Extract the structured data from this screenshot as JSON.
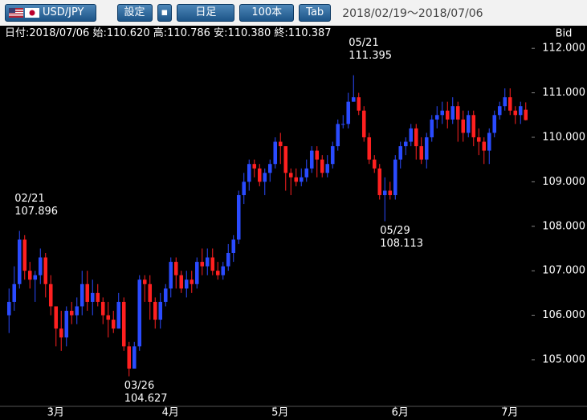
{
  "toolbar": {
    "symbol": "USD/JPY",
    "buttons": [
      "設定",
      "日足",
      "100本",
      "Tab"
    ],
    "range": "2018/02/19～2018/07/06"
  },
  "info": [
    {
      "label": "日付:",
      "value": "2018/07/06"
    },
    {
      "label": "始:",
      "value": "110.620"
    },
    {
      "label": "高:",
      "value": "110.786"
    },
    {
      "label": "安:",
      "value": "110.380"
    },
    {
      "label": "終:",
      "value": "110.387"
    }
  ],
  "chart_data": {
    "type": "candlestick",
    "y_axis_label": "Bid",
    "up_color": "#2a4bff",
    "down_color": "#ff2020",
    "categories": [
      null,
      null,
      null,
      null,
      null,
      null,
      null,
      null,
      "3月",
      null,
      null,
      null,
      null,
      null,
      null,
      null,
      null,
      null,
      null,
      null,
      null,
      null,
      null,
      null,
      null,
      null,
      null,
      null,
      null,
      null,
      "4月",
      null,
      null,
      null,
      null,
      null,
      null,
      null,
      null,
      null,
      null,
      null,
      null,
      null,
      null,
      null,
      null,
      null,
      null,
      null,
      null,
      "5月",
      null,
      null,
      null,
      null,
      null,
      null,
      null,
      null,
      null,
      null,
      null,
      null,
      null,
      null,
      null,
      null,
      null,
      null,
      null,
      null,
      null,
      null,
      "6月",
      null,
      null,
      null,
      null,
      null,
      null,
      null,
      null,
      null,
      null,
      null,
      null,
      null,
      null,
      null,
      null,
      null,
      null,
      null,
      null,
      "7月",
      null,
      null,
      null,
      null
    ],
    "open": [
      106.0,
      106.3,
      106.7,
      107.7,
      107.0,
      106.8,
      106.9,
      107.3,
      106.7,
      106.2,
      105.7,
      105.5,
      106.1,
      106.0,
      106.2,
      106.7,
      106.3,
      106.5,
      106.3,
      106.0,
      105.9,
      105.7,
      106.3,
      105.3,
      104.8,
      105.3,
      106.8,
      106.7,
      106.3,
      105.9,
      106.3,
      106.6,
      107.2,
      106.9,
      106.6,
      106.8,
      106.7,
      107.2,
      107.1,
      107.3,
      107.0,
      106.9,
      107.1,
      107.4,
      107.7,
      108.7,
      109.0,
      109.4,
      109.3,
      109.0,
      109.2,
      109.4,
      109.9,
      109.8,
      109.2,
      109.1,
      109.0,
      109.1,
      109.3,
      109.7,
      109.5,
      109.2,
      109.4,
      109.8,
      110.3,
      110.3,
      110.8,
      110.9,
      110.6,
      110.0,
      109.5,
      109.3,
      108.7,
      108.8,
      108.7,
      109.5,
      109.8,
      109.9,
      110.2,
      109.8,
      109.5,
      110.0,
      110.4,
      110.5,
      110.6,
      110.4,
      110.7,
      110.4,
      110.1,
      110.5,
      110.0,
      109.9,
      109.7,
      110.1,
      110.5,
      110.7,
      110.9,
      110.6,
      110.5,
      110.62
    ],
    "high": [
      106.6,
      107.1,
      107.896,
      107.8,
      107.2,
      107.0,
      107.5,
      107.4,
      106.9,
      106.2,
      106.1,
      106.2,
      106.3,
      106.4,
      107.0,
      107.0,
      106.8,
      106.7,
      106.4,
      106.3,
      106.1,
      106.5,
      106.4,
      105.4,
      105.4,
      106.9,
      106.9,
      106.9,
      106.4,
      106.5,
      106.7,
      107.3,
      107.3,
      107.0,
      107.0,
      107.0,
      107.3,
      107.5,
      107.5,
      107.5,
      107.2,
      107.2,
      107.6,
      107.8,
      108.8,
      109.2,
      109.5,
      109.5,
      109.4,
      109.3,
      109.5,
      110.0,
      110.1,
      109.8,
      109.3,
      109.3,
      109.3,
      109.5,
      109.8,
      109.8,
      109.6,
      109.6,
      109.9,
      110.4,
      110.5,
      111.0,
      111.395,
      111.0,
      110.7,
      110.1,
      109.6,
      109.4,
      109.1,
      109.0,
      109.6,
      109.9,
      110.0,
      110.3,
      110.3,
      110.0,
      110.1,
      110.5,
      110.7,
      110.8,
      110.8,
      110.9,
      110.8,
      110.6,
      110.6,
      110.6,
      110.2,
      110.0,
      110.2,
      110.6,
      110.8,
      111.1,
      111.1,
      110.7,
      110.8,
      110.786
    ],
    "low": [
      105.6,
      106.1,
      106.6,
      106.8,
      106.6,
      106.3,
      106.7,
      106.4,
      106.0,
      105.3,
      105.2,
      105.3,
      105.8,
      105.8,
      106.0,
      106.1,
      106.0,
      106.2,
      105.8,
      105.5,
      105.6,
      105.7,
      105.2,
      104.627,
      104.8,
      105.2,
      106.3,
      105.9,
      105.7,
      105.7,
      106.2,
      106.4,
      106.6,
      106.5,
      106.4,
      106.5,
      106.6,
      106.9,
      106.9,
      106.9,
      106.8,
      106.8,
      107.0,
      107.2,
      107.6,
      108.5,
      108.8,
      109.1,
      108.9,
      108.7,
      109.0,
      109.3,
      109.4,
      108.8,
      108.7,
      108.9,
      108.9,
      109.0,
      109.2,
      109.1,
      109.1,
      109.1,
      109.3,
      109.7,
      110.2,
      110.2,
      110.8,
      110.5,
      109.9,
      109.4,
      109.2,
      108.6,
      108.113,
      108.6,
      108.6,
      109.3,
      109.6,
      109.8,
      109.5,
      109.4,
      109.3,
      109.9,
      110.2,
      110.3,
      110.2,
      110.3,
      109.9,
      109.9,
      110.0,
      109.8,
      109.6,
      109.4,
      109.4,
      110.0,
      110.4,
      110.6,
      110.5,
      110.3,
      110.3,
      110.38
    ],
    "close": [
      106.3,
      106.7,
      107.7,
      107.0,
      106.8,
      106.9,
      107.3,
      106.7,
      106.2,
      105.7,
      105.5,
      106.1,
      106.0,
      106.2,
      106.7,
      106.3,
      106.5,
      106.3,
      106.0,
      105.9,
      105.7,
      106.3,
      105.3,
      104.8,
      105.3,
      106.8,
      106.7,
      106.3,
      105.9,
      106.3,
      106.6,
      107.2,
      106.9,
      106.6,
      106.8,
      106.7,
      107.2,
      107.1,
      107.3,
      107.0,
      106.9,
      107.1,
      107.4,
      107.7,
      108.7,
      109.0,
      109.4,
      109.3,
      109.0,
      109.2,
      109.4,
      109.9,
      109.8,
      109.2,
      109.1,
      109.0,
      109.1,
      109.3,
      109.7,
      109.5,
      109.2,
      109.4,
      109.8,
      110.3,
      110.3,
      110.8,
      110.9,
      110.6,
      110.0,
      109.5,
      109.3,
      108.7,
      108.8,
      108.7,
      109.5,
      109.8,
      109.9,
      110.2,
      109.8,
      109.5,
      110.0,
      110.4,
      110.5,
      110.6,
      110.4,
      110.7,
      110.4,
      110.1,
      110.5,
      110.0,
      109.9,
      109.7,
      110.1,
      110.5,
      110.7,
      110.9,
      110.6,
      110.5,
      110.7,
      110.387
    ],
    "ylim": [
      103.97,
      112.22
    ],
    "yticks": [
      {
        "value": 105,
        "label": "105.000"
      },
      {
        "value": 106,
        "label": "106.000"
      },
      {
        "value": 107,
        "label": "107.000"
      },
      {
        "value": 108,
        "label": "108.000"
      },
      {
        "value": 109,
        "label": "109.000"
      },
      {
        "value": 110,
        "label": "110.000"
      },
      {
        "value": 111,
        "label": "111.000"
      },
      {
        "value": 112,
        "label": "112.000"
      }
    ],
    "annotations": [
      {
        "date": "02/21",
        "value": 107.896
      },
      {
        "date": "03/26",
        "value": 104.627
      },
      {
        "date": "05/21",
        "value": 111.395
      },
      {
        "date": "05/29",
        "value": 108.113
      }
    ]
  }
}
